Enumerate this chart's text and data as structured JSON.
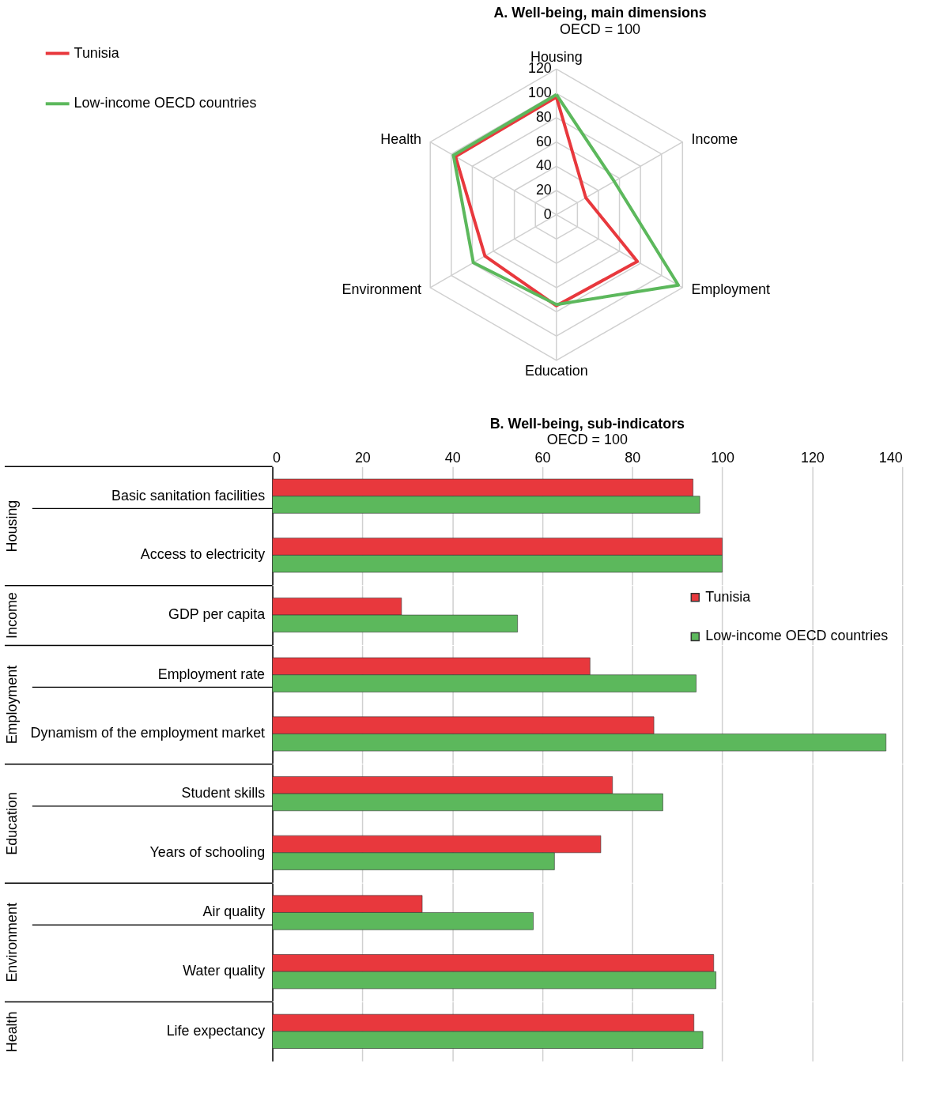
{
  "chart_data": [
    {
      "type": "radar",
      "title": "A. Well-being, main dimensions",
      "subtitle": "OECD = 100",
      "categories": [
        "Housing",
        "Income",
        "Employment",
        "Education",
        "Environment",
        "Health"
      ],
      "series": [
        {
          "name": "Tunisia",
          "color": "#e8383d",
          "values": [
            97,
            28,
            77,
            75,
            68,
            96
          ]
        },
        {
          "name": "Low-income OECD countries",
          "color": "#5cb85c",
          "values": [
            99,
            55,
            116,
            74,
            79,
            98
          ]
        }
      ],
      "ylim": [
        0,
        120
      ],
      "yticks": [
        0,
        20,
        40,
        60,
        80,
        100,
        120
      ],
      "grid": true,
      "legend": "top left",
      "marker": "none"
    },
    {
      "type": "bar",
      "orientation": "horizontal",
      "title": "B.  Well-being, sub-indicators",
      "subtitle": "OECD = 100",
      "ylabel": "Housing",
      "categories": [
        "Basic sanitation facilities",
        "Access to electricity"
      ],
      "series": [
        {
          "color": "#e8383d",
          "values": [
            93.5,
            100
          ]
        },
        {
          "color": "#5cb85c",
          "values": [
            95,
            100
          ]
        }
      ],
      "xlim": [
        0,
        140
      ],
      "xticks": [
        0,
        20,
        40,
        60,
        80,
        100,
        120,
        140
      ],
      "grid": "x"
    },
    {
      "type": "bar",
      "orientation": "horizontal",
      "ylabel": "Income",
      "categories": [
        "GDP per capita"
      ],
      "series": [
        {
          "name": "Tunisia",
          "color": "#e8383d",
          "values": [
            28.7
          ]
        },
        {
          "name": "Low-income OECD countries",
          "color": "#5cb85c",
          "values": [
            54.5
          ]
        }
      ],
      "xlim": [
        0,
        140
      ],
      "xticks": [
        0,
        20,
        40,
        60,
        80,
        100,
        120,
        140
      ],
      "grid": "x",
      "tick_labels": "y",
      "legend": "right"
    },
    {
      "type": "bar",
      "orientation": "horizontal",
      "ylabel": "Employment",
      "categories": [
        "Employment rate",
        "Dynamism of the employment market"
      ],
      "series": [
        {
          "color": "#e8383d",
          "values": [
            70.6,
            84.8
          ]
        },
        {
          "color": "#5cb85c",
          "values": [
            94.2,
            136.4
          ]
        }
      ],
      "xlim": [
        0,
        140
      ],
      "xticks": [
        0,
        20,
        40,
        60,
        80,
        100,
        120,
        140
      ],
      "grid": "x",
      "tick_labels": "y"
    },
    {
      "type": "bar",
      "orientation": "horizontal",
      "ylabel": "Education",
      "categories": [
        "Student skills",
        "Years of schooling"
      ],
      "series": [
        {
          "color": "#e8383d",
          "values": [
            75.6,
            73
          ]
        },
        {
          "color": "#5cb85c",
          "values": [
            86.8,
            62.7
          ]
        }
      ],
      "xlim": [
        0,
        140
      ],
      "xticks": [
        0,
        20,
        40,
        60,
        80,
        100,
        120,
        140
      ],
      "grid": "x",
      "tick_labels": "y"
    },
    {
      "type": "bar",
      "orientation": "horizontal",
      "ylabel": "Environment",
      "categories": [
        "Air quality",
        "Water quality"
      ],
      "series": [
        {
          "color": "#e8383d",
          "values": [
            33.3,
            98.1
          ]
        },
        {
          "color": "#5cb85c",
          "values": [
            58,
            98.6
          ]
        }
      ],
      "xlim": [
        0,
        140
      ],
      "xticks": [
        0,
        20,
        40,
        60,
        80,
        100,
        120,
        140
      ],
      "grid": "x",
      "tick_labels": "y"
    },
    {
      "type": "bar",
      "orientation": "horizontal",
      "ylabel": "Health",
      "categories": [
        "Life expectancy"
      ],
      "series": [
        {
          "color": "#e8383d",
          "values": [
            93.7
          ]
        },
        {
          "color": "#5cb85c",
          "values": [
            95.7
          ]
        }
      ],
      "xlim": [
        0,
        140
      ],
      "xticks": [
        0,
        20,
        40,
        60,
        80,
        100,
        120,
        140
      ],
      "grid": "x",
      "tick_labels": "y"
    }
  ]
}
